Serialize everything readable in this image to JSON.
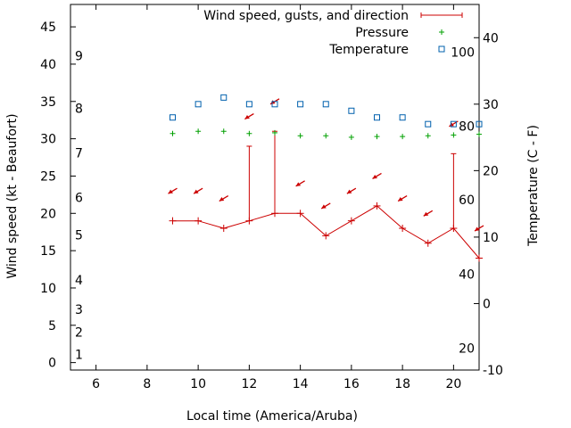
{
  "chart_data": {
    "type": "line",
    "xlabel": "Local time (America/Aruba)",
    "ylabel": "Wind speed (kt - Beaufort)",
    "y2label": "Temperature (C - F)",
    "xlim": [
      5,
      21
    ],
    "ylim": [
      -1,
      48
    ],
    "y2lim": [
      -10,
      45
    ],
    "x_ticks": [
      6,
      8,
      10,
      12,
      14,
      16,
      18,
      20
    ],
    "y_ticks": [
      0,
      5,
      10,
      15,
      20,
      25,
      30,
      35,
      40,
      45
    ],
    "y2_ticks": [
      -10,
      0,
      10,
      20,
      30,
      40
    ],
    "beaufort_labels": [
      {
        "text": "1",
        "y": 1.1
      },
      {
        "text": "2",
        "y": 4.1
      },
      {
        "text": "3",
        "y": 7.1
      },
      {
        "text": "4",
        "y": 11.1
      },
      {
        "text": "5",
        "y": 17.1
      },
      {
        "text": "6",
        "y": 22.1
      },
      {
        "text": "7",
        "y": 28.1
      },
      {
        "text": "8",
        "y": 34.1
      },
      {
        "text": "9",
        "y": 41.1
      }
    ],
    "fahrenheit_labels": [
      {
        "text": "20",
        "celsius": -6.7
      },
      {
        "text": "40",
        "celsius": 4.4
      },
      {
        "text": "60",
        "celsius": 15.6
      },
      {
        "text": "80",
        "celsius": 26.7
      },
      {
        "text": "100",
        "celsius": 37.8
      }
    ],
    "legend_position": "top-right",
    "grid": false,
    "series": [
      {
        "name": "Wind speed, gusts, and direction",
        "axis": "y",
        "color": "#cc0000",
        "points": [
          {
            "x": 9,
            "speed": 19,
            "gust": null,
            "dir": "NE"
          },
          {
            "x": 10,
            "speed": 19,
            "gust": null,
            "dir": "NE"
          },
          {
            "x": 11,
            "speed": 18,
            "gust": null,
            "dir": "NE"
          },
          {
            "x": 12,
            "speed": 19,
            "gust": 29,
            "dir": "NE"
          },
          {
            "x": 13,
            "speed": 20,
            "gust": 31,
            "dir": "NE"
          },
          {
            "x": 14,
            "speed": 20,
            "gust": null,
            "dir": "NE"
          },
          {
            "x": 15,
            "speed": 17,
            "gust": null,
            "dir": "NE"
          },
          {
            "x": 16,
            "speed": 19,
            "gust": null,
            "dir": "NE"
          },
          {
            "x": 17,
            "speed": 21,
            "gust": null,
            "dir": "NE"
          },
          {
            "x": 18,
            "speed": 18,
            "gust": null,
            "dir": "NE"
          },
          {
            "x": 19,
            "speed": 16,
            "gust": null,
            "dir": "NE"
          },
          {
            "x": 20,
            "speed": 18,
            "gust": 28,
            "dir": "NE"
          },
          {
            "x": 21,
            "speed": 14,
            "gust": null,
            "dir": "NE"
          }
        ],
        "arrows": [
          {
            "x": 9,
            "y": 23
          },
          {
            "x": 10,
            "y": 23
          },
          {
            "x": 11,
            "y": 22
          },
          {
            "x": 12,
            "y": 33
          },
          {
            "x": 13,
            "y": 35
          },
          {
            "x": 14,
            "y": 24
          },
          {
            "x": 15,
            "y": 21
          },
          {
            "x": 16,
            "y": 23
          },
          {
            "x": 17,
            "y": 25
          },
          {
            "x": 18,
            "y": 22
          },
          {
            "x": 19,
            "y": 20
          },
          {
            "x": 20,
            "y": 32
          },
          {
            "x": 21,
            "y": 18
          }
        ]
      },
      {
        "name": "Pressure",
        "axis": "y",
        "color": "#00a000",
        "x": [
          9,
          10,
          11,
          12,
          13,
          14,
          15,
          16,
          17,
          18,
          19,
          20,
          21
        ],
        "values": [
          30.7,
          31.0,
          31.0,
          30.7,
          30.8,
          30.4,
          30.4,
          30.2,
          30.3,
          30.3,
          30.4,
          30.5,
          30.6
        ]
      },
      {
        "name": "Temperature",
        "axis": "y2",
        "color": "#0060ad",
        "x": [
          9,
          10,
          11,
          12,
          13,
          14,
          15,
          16,
          17,
          18,
          19,
          20,
          21
        ],
        "values": [
          28,
          30,
          31,
          30,
          30,
          30,
          30,
          29,
          28,
          28,
          27,
          27,
          27
        ]
      }
    ]
  }
}
